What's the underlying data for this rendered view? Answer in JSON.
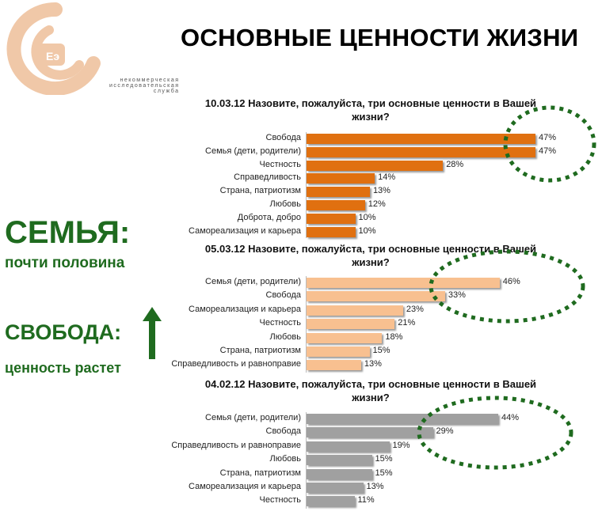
{
  "header": {
    "title": "ОСНОВНЫЕ ЦЕННОСТИ ЖИЗНИ",
    "logo_text": [
      "некоммерческая",
      "исследовательская",
      "служба"
    ]
  },
  "side": {
    "line1": "СЕМЬЯ:",
    "line2": "почти половина",
    "line3": "СВОБОДА:",
    "line4": "ценность растет",
    "accent": "#1f6b1f",
    "arrow": "arrow-up-icon"
  },
  "chart_data": [
    {
      "type": "bar",
      "orientation": "horizontal",
      "title": "10.03.12 Назовите, пожалуйста, три основные ценности в Вашей жизни?",
      "color": "#e07010",
      "categories": [
        "Свобода",
        "Семья (дети, родители)",
        "Честность",
        "Справедливость",
        "Страна, патриотизм",
        "Любовь",
        "Доброта, добро",
        "Самореализация и карьера"
      ],
      "values": [
        47,
        47,
        28,
        14,
        13,
        12,
        10,
        10
      ],
      "data_labels": [
        "47%",
        "47%",
        "28%",
        "14%",
        "13%",
        "12%",
        "10%",
        "10%"
      ],
      "highlight": "dotted-ellipse around top two values"
    },
    {
      "type": "bar",
      "orientation": "horizontal",
      "title": "05.03.12 Назовите, пожалуйста, три основные ценности в Вашей жизни?",
      "color": "#f8c090",
      "categories": [
        "Семья (дети, родители)",
        "Свобода",
        "Самореализация и карьера",
        "Честность",
        "Любовь",
        "Страна, патриотизм",
        "Справедливость и равноправие"
      ],
      "values": [
        46,
        33,
        23,
        21,
        18,
        15,
        13
      ],
      "data_labels": [
        "46%",
        "33%",
        "23%",
        "21%",
        "18%",
        "15%",
        "13%"
      ],
      "highlight": "dotted-ellipse around top two values"
    },
    {
      "type": "bar",
      "orientation": "horizontal",
      "title": "04.02.12 Назовите, пожалуйста, три основные ценности в Вашей жизни?",
      "color": "#a0a0a0",
      "categories": [
        "Семья (дети, родители)",
        "Свобода",
        "Справедливость и равноправие",
        "Любовь",
        "Страна, патриотизм",
        "Самореализация и карьера",
        "Честность"
      ],
      "values": [
        44,
        29,
        19,
        15,
        15,
        13,
        11
      ],
      "data_labels": [
        "44%",
        "29%",
        "19%",
        "15%",
        "15%",
        "13%",
        "11%"
      ],
      "highlight": "dotted-ellipse around top two values"
    }
  ]
}
